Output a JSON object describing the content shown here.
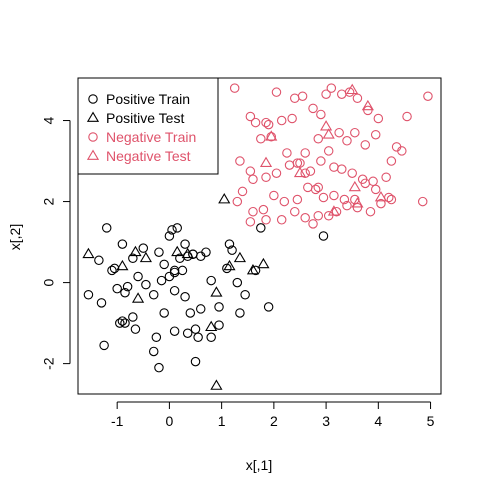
{
  "chart_data": {
    "type": "scatter",
    "title": "",
    "xlabel": "x[,1]",
    "ylabel": "x[,2]",
    "xlim": [
      -1.75,
      5.2
    ],
    "ylim": [
      -2.75,
      5.05
    ],
    "xticks": [
      -1,
      0,
      1,
      2,
      3,
      4,
      5
    ],
    "yticks": [
      -2,
      0,
      2,
      4
    ],
    "xtick_labels": [
      "-1",
      "0",
      "1",
      "2",
      "3",
      "4",
      "5"
    ],
    "ytick_labels": [
      "-2",
      "0",
      "2",
      "4"
    ],
    "grid": false,
    "legend_position": "top-left",
    "series": [
      {
        "name": "Positive Train",
        "marker": "circle",
        "color": "#000000",
        "x": [
          -1.2,
          -1.1,
          -0.9,
          -0.5,
          -0.7,
          -0.2,
          0.0,
          0.05,
          0.15,
          0.3,
          0.2,
          -0.1,
          0.1,
          0.35,
          0.45,
          0.6,
          0.7,
          1.15,
          1.2,
          -1.35,
          -1.05,
          -0.8,
          -0.6,
          -0.45,
          -0.15,
          0.0,
          0.1,
          0.25,
          0.45,
          0.8,
          1.3,
          1.45,
          1.65,
          1.75,
          -1.55,
          -1.3,
          -1.0,
          -0.85,
          -0.7,
          -0.3,
          -0.1,
          0.1,
          0.3,
          0.6,
          0.95,
          1.35,
          -0.95,
          -0.9,
          -0.85,
          -0.65,
          -0.25,
          0.1,
          0.35,
          0.5,
          0.55,
          0.8,
          1.9,
          -1.25,
          -0.3,
          0.5,
          0.95,
          0.4,
          -0.2,
          1.1,
          2.95
        ],
        "y": [
          1.35,
          0.3,
          0.95,
          0.85,
          0.6,
          0.75,
          1.15,
          1.3,
          1.35,
          0.95,
          0.6,
          0.45,
          0.25,
          0.65,
          0.7,
          0.65,
          0.75,
          0.95,
          0.8,
          0.55,
          0.35,
          -0.1,
          0.15,
          -0.05,
          0.05,
          0.15,
          0.3,
          0.3,
          0.7,
          0.05,
          0.0,
          -0.3,
          0.3,
          1.35,
          -0.3,
          -0.5,
          -0.15,
          -0.25,
          -0.85,
          -0.3,
          -0.75,
          -0.2,
          -0.35,
          -0.65,
          -0.6,
          -0.75,
          -1.0,
          -0.95,
          -1.0,
          -1.15,
          -1.35,
          -1.2,
          -1.25,
          -1.15,
          -1.35,
          -1.35,
          -0.6,
          -1.55,
          -1.7,
          -1.95,
          -1.05,
          -0.75,
          -2.1,
          0.35,
          1.15
        ]
      },
      {
        "name": "Positive Test",
        "marker": "triangle",
        "color": "#000000",
        "x": [
          -1.55,
          -0.65,
          -0.45,
          -0.9,
          0.15,
          0.35,
          1.05,
          1.15,
          1.35,
          1.6,
          1.8,
          0.9,
          0.8,
          -0.6,
          0.9
        ],
        "y": [
          0.7,
          0.75,
          0.6,
          0.4,
          0.75,
          0.7,
          2.05,
          0.4,
          0.6,
          0.3,
          0.45,
          -0.25,
          -1.1,
          -0.4,
          -2.55
        ]
      },
      {
        "name": "Negative Train",
        "marker": "circle",
        "color": "#DF536B",
        "x": [
          1.25,
          1.55,
          1.65,
          1.85,
          1.9,
          2.05,
          2.15,
          2.4,
          2.55,
          2.75,
          3.0,
          3.1,
          3.3,
          3.45,
          3.6,
          3.8,
          4.0,
          4.35,
          4.55,
          4.95,
          1.35,
          1.55,
          1.75,
          1.95,
          2.25,
          2.45,
          2.6,
          2.85,
          3.05,
          3.25,
          3.4,
          3.55,
          3.75,
          3.95,
          4.25,
          4.45,
          1.4,
          1.6,
          1.85,
          2.05,
          2.3,
          2.5,
          2.7,
          2.9,
          3.15,
          3.3,
          3.5,
          3.7,
          3.9,
          4.15,
          1.3,
          1.6,
          1.8,
          2.0,
          2.2,
          2.45,
          2.65,
          2.8,
          2.95,
          3.15,
          3.35,
          3.55,
          3.75,
          3.95,
          4.2,
          4.85,
          1.55,
          1.85,
          2.15,
          2.4,
          2.6,
          2.75,
          2.85,
          3.05,
          3.2,
          3.4,
          3.6,
          3.85,
          4.05,
          4.25,
          2.35,
          2.6,
          2.85,
          2.9
        ],
        "y": [
          4.8,
          4.1,
          3.95,
          3.95,
          3.9,
          4.7,
          4.0,
          4.55,
          4.6,
          4.3,
          4.65,
          4.8,
          4.65,
          4.7,
          4.55,
          4.25,
          4.05,
          3.35,
          4.1,
          4.6,
          3.0,
          2.75,
          3.55,
          3.6,
          3.2,
          2.95,
          3.2,
          3.55,
          3.25,
          3.7,
          3.5,
          3.7,
          3.4,
          3.65,
          3.0,
          3.25,
          2.25,
          2.55,
          2.6,
          2.7,
          2.9,
          2.95,
          2.75,
          3.0,
          2.85,
          2.8,
          2.7,
          2.55,
          2.5,
          2.6,
          2.0,
          1.75,
          1.8,
          2.15,
          2.0,
          2.05,
          2.35,
          2.3,
          2.1,
          2.15,
          2.05,
          2.05,
          2.45,
          2.3,
          2.1,
          2.0,
          1.5,
          1.55,
          1.55,
          1.75,
          1.6,
          1.45,
          1.65,
          1.65,
          1.75,
          1.9,
          1.85,
          1.75,
          1.95,
          2.05,
          4.05,
          2.7,
          2.35,
          4.15
        ]
      },
      {
        "name": "Negative Test",
        "marker": "triangle",
        "color": "#DF536B",
        "x": [
          1.95,
          1.85,
          2.5,
          3.0,
          3.05,
          3.5,
          3.8,
          3.55,
          3.6,
          4.05,
          3.15
        ],
        "y": [
          3.6,
          2.95,
          2.7,
          3.85,
          3.65,
          4.75,
          4.35,
          2.35,
          1.95,
          2.1,
          1.75
        ]
      }
    ]
  }
}
